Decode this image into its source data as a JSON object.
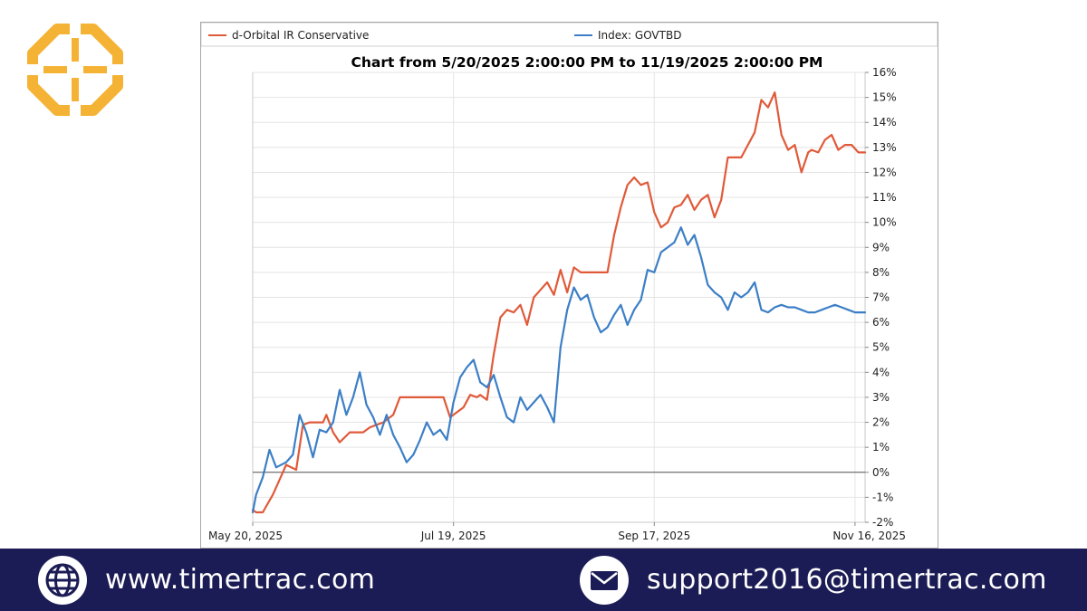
{
  "brand": {
    "logo_color": "#f5b335"
  },
  "chart_data": {
    "type": "line",
    "title": "Chart from 5/20/2025 2:00:00 PM to 11/19/2025 2:00:00 PM",
    "legend_position": "top",
    "grid": true,
    "x_ticks": [
      "May 20, 2025",
      "Jul 19, 2025",
      "Sep 17, 2025",
      "Nov 16, 2025"
    ],
    "x_tick_dates": [
      "2025-05-20",
      "2025-07-19",
      "2025-09-17",
      "2025-11-16"
    ],
    "xlim": [
      "2025-05-20",
      "2025-11-19"
    ],
    "ylim": [
      -2,
      16
    ],
    "y_ticks": [
      "16%",
      "15%",
      "14%",
      "13%",
      "12%",
      "11%",
      "10%",
      "9%",
      "8%",
      "7%",
      "6%",
      "5%",
      "4%",
      "3%",
      "2%",
      "1%",
      "0%",
      "-1%",
      "-2%"
    ],
    "y_tick_values": [
      16,
      15,
      14,
      13,
      12,
      11,
      10,
      9,
      8,
      7,
      6,
      5,
      4,
      3,
      2,
      1,
      0,
      -1,
      -2
    ],
    "series": [
      {
        "name": "d-Orbital IR Conservative",
        "color": "#e05a3a",
        "x": [
          "2025-05-20",
          "2025-05-21",
          "2025-05-23",
          "2025-05-26",
          "2025-05-28",
          "2025-05-30",
          "2025-06-02",
          "2025-06-04",
          "2025-06-06",
          "2025-06-08",
          "2025-06-10",
          "2025-06-11",
          "2025-06-13",
          "2025-06-15",
          "2025-06-18",
          "2025-06-20",
          "2025-06-22",
          "2025-06-24",
          "2025-06-26",
          "2025-06-28",
          "2025-07-01",
          "2025-07-03",
          "2025-07-05",
          "2025-07-07",
          "2025-07-09",
          "2025-07-12",
          "2025-07-14",
          "2025-07-16",
          "2025-07-18",
          "2025-07-20",
          "2025-07-22",
          "2025-07-24",
          "2025-07-26",
          "2025-07-27",
          "2025-07-29",
          "2025-07-31",
          "2025-08-02",
          "2025-08-04",
          "2025-08-06",
          "2025-08-08",
          "2025-08-10",
          "2025-08-12",
          "2025-08-14",
          "2025-08-16",
          "2025-08-18",
          "2025-08-20",
          "2025-08-22",
          "2025-08-24",
          "2025-08-26",
          "2025-08-28",
          "2025-08-30",
          "2025-09-01",
          "2025-09-03",
          "2025-09-05",
          "2025-09-07",
          "2025-09-09",
          "2025-09-11",
          "2025-09-13",
          "2025-09-15",
          "2025-09-17",
          "2025-09-19",
          "2025-09-21",
          "2025-09-23",
          "2025-09-25",
          "2025-09-27",
          "2025-09-29",
          "2025-10-01",
          "2025-10-03",
          "2025-10-05",
          "2025-10-07",
          "2025-10-09",
          "2025-10-11",
          "2025-10-13",
          "2025-10-15",
          "2025-10-17",
          "2025-10-19",
          "2025-10-21",
          "2025-10-23",
          "2025-10-25",
          "2025-10-27",
          "2025-10-29",
          "2025-10-31",
          "2025-11-02",
          "2025-11-03",
          "2025-11-05",
          "2025-11-07",
          "2025-11-09",
          "2025-11-11",
          "2025-11-13",
          "2025-11-15",
          "2025-11-17",
          "2025-11-19"
        ],
        "y": [
          -1.5,
          -1.6,
          -1.6,
          -0.9,
          -0.3,
          0.3,
          0.1,
          1.9,
          2.0,
          2.0,
          2.0,
          2.3,
          1.6,
          1.2,
          1.6,
          1.6,
          1.6,
          1.8,
          1.9,
          2.0,
          2.3,
          3.0,
          3.0,
          3.0,
          3.0,
          3.0,
          3.0,
          3.0,
          2.2,
          2.4,
          2.6,
          3.1,
          3.0,
          3.1,
          2.9,
          4.7,
          6.2,
          6.5,
          6.4,
          6.7,
          5.9,
          7.0,
          7.3,
          7.6,
          7.1,
          8.1,
          7.2,
          8.2,
          8.0,
          8.0,
          8.0,
          8.0,
          8.0,
          9.5,
          10.6,
          11.5,
          11.8,
          11.5,
          11.6,
          10.4,
          9.8,
          10.0,
          10.6,
          10.7,
          11.1,
          10.5,
          10.9,
          11.1,
          10.2,
          10.9,
          12.6,
          12.6,
          12.6,
          13.1,
          13.6,
          14.9,
          14.6,
          15.2,
          13.5,
          12.9,
          13.1,
          12.0,
          12.8,
          12.9,
          12.8,
          13.3,
          13.5,
          12.9,
          13.1,
          13.1,
          12.8,
          12.8
        ]
      },
      {
        "name": "Index: GOVTBD",
        "color": "#3c7fc6",
        "x": [
          "2025-05-20",
          "2025-05-21",
          "2025-05-23",
          "2025-05-25",
          "2025-05-27",
          "2025-05-30",
          "2025-06-01",
          "2025-06-03",
          "2025-06-05",
          "2025-06-07",
          "2025-06-09",
          "2025-06-11",
          "2025-06-13",
          "2025-06-15",
          "2025-06-17",
          "2025-06-19",
          "2025-06-21",
          "2025-06-23",
          "2025-06-25",
          "2025-06-27",
          "2025-06-29",
          "2025-07-01",
          "2025-07-03",
          "2025-07-05",
          "2025-07-07",
          "2025-07-09",
          "2025-07-11",
          "2025-07-13",
          "2025-07-15",
          "2025-07-17",
          "2025-07-19",
          "2025-07-21",
          "2025-07-23",
          "2025-07-25",
          "2025-07-27",
          "2025-07-29",
          "2025-07-31",
          "2025-08-02",
          "2025-08-04",
          "2025-08-06",
          "2025-08-08",
          "2025-08-10",
          "2025-08-12",
          "2025-08-14",
          "2025-08-16",
          "2025-08-18",
          "2025-08-20",
          "2025-08-22",
          "2025-08-24",
          "2025-08-26",
          "2025-08-28",
          "2025-08-30",
          "2025-09-01",
          "2025-09-03",
          "2025-09-05",
          "2025-09-07",
          "2025-09-09",
          "2025-09-11",
          "2025-09-13",
          "2025-09-15",
          "2025-09-17",
          "2025-09-19",
          "2025-09-21",
          "2025-09-23",
          "2025-09-25",
          "2025-09-27",
          "2025-09-29",
          "2025-10-01",
          "2025-10-03",
          "2025-10-05",
          "2025-10-07",
          "2025-10-09",
          "2025-10-11",
          "2025-10-13",
          "2025-10-15",
          "2025-10-17",
          "2025-10-19",
          "2025-10-21",
          "2025-10-23",
          "2025-10-25",
          "2025-10-27",
          "2025-10-29",
          "2025-10-31",
          "2025-11-02",
          "2025-11-04",
          "2025-11-06",
          "2025-11-08",
          "2025-11-10",
          "2025-11-12",
          "2025-11-14",
          "2025-11-16",
          "2025-11-18",
          "2025-11-19"
        ],
        "y": [
          -1.6,
          -0.9,
          -0.2,
          0.9,
          0.2,
          0.4,
          0.7,
          2.3,
          1.6,
          0.6,
          1.7,
          1.6,
          2.0,
          3.3,
          2.3,
          3.0,
          4.0,
          2.7,
          2.2,
          1.5,
          2.3,
          1.5,
          1.0,
          0.4,
          0.7,
          1.3,
          2.0,
          1.5,
          1.7,
          1.3,
          2.8,
          3.8,
          4.2,
          4.5,
          3.6,
          3.4,
          3.9,
          3.0,
          2.2,
          2.0,
          3.0,
          2.5,
          2.8,
          3.1,
          2.6,
          2.0,
          5.0,
          6.5,
          7.4,
          6.9,
          7.1,
          6.2,
          5.6,
          5.8,
          6.3,
          6.7,
          5.9,
          6.5,
          6.9,
          8.1,
          8.0,
          8.8,
          9.0,
          9.2,
          9.8,
          9.1,
          9.5,
          8.6,
          7.5,
          7.2,
          7.0,
          6.5,
          7.2,
          7.0,
          7.2,
          7.6,
          6.5,
          6.4,
          6.6,
          6.7,
          6.6,
          6.6,
          6.5,
          6.4,
          6.4,
          6.5,
          6.6,
          6.7,
          6.6,
          6.5,
          6.4,
          6.4,
          6.4
        ]
      }
    ]
  },
  "footer": {
    "background": "#1b1b55",
    "website": "www.timertrac.com",
    "email": "support2016@timertrac.com",
    "website_icon": "globe-icon",
    "email_icon": "envelope-icon"
  }
}
